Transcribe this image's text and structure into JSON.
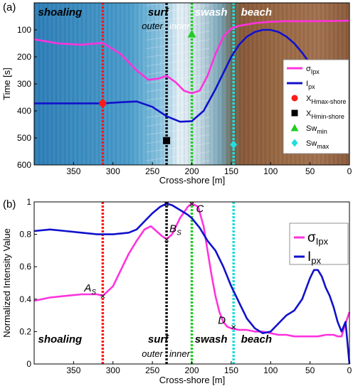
{
  "chart_data": [
    {
      "panel_label": "(a)",
      "type": "line",
      "xlabel": "Cross-shore [m]",
      "ylabel": "Time [s]",
      "xlim": [
        400,
        0
      ],
      "ylim": [
        600,
        0
      ],
      "xticks": [
        350,
        300,
        250,
        200,
        150,
        100,
        50,
        0
      ],
      "yticks": [
        100,
        200,
        300,
        400,
        500,
        600
      ],
      "zones": [
        {
          "label": "shoaling",
          "color": "#000000"
        },
        {
          "label": "surf",
          "color": "#000000"
        },
        {
          "label": "swash",
          "color": "#ffffff"
        },
        {
          "label": "beach",
          "color": "#ffffff"
        }
      ],
      "subzones": [
        {
          "label": "outer",
          "color": "#000000"
        },
        {
          "label": "inner",
          "color": "#ffffff"
        }
      ],
      "vlines": [
        {
          "x": 313,
          "color": "#ff1a1a"
        },
        {
          "x": 232,
          "color": "#111111"
        },
        {
          "x": 200,
          "color": "#22cc22"
        },
        {
          "x": 147,
          "color": "#22dddd"
        }
      ],
      "series": [
        {
          "color": "#ff33dd",
          "x": [
            400,
            370,
            340,
            313,
            290,
            270,
            255,
            242,
            232,
            220,
            210,
            200,
            190,
            180,
            170,
            160,
            150,
            140,
            120,
            100,
            80,
            60,
            40,
            20,
            0
          ],
          "y": [
            135,
            150,
            155,
            148,
            190,
            250,
            285,
            280,
            270,
            295,
            325,
            335,
            325,
            270,
            190,
            125,
            95,
            85,
            75,
            70,
            68,
            68,
            68,
            67,
            66
          ]
        },
        {
          "color": "#1111cc",
          "x": [
            400,
            370,
            340,
            313,
            290,
            270,
            250,
            232,
            215,
            200,
            185,
            170,
            160,
            150,
            140,
            130,
            120,
            110,
            100,
            90,
            80,
            70,
            60,
            50,
            40,
            30,
            20,
            10,
            0
          ],
          "y": [
            372,
            372,
            372,
            372,
            368,
            365,
            385,
            420,
            440,
            438,
            400,
            320,
            260,
            200,
            155,
            125,
            108,
            100,
            100,
            108,
            125,
            150,
            185,
            225,
            265,
            290,
            300,
            295,
            280
          ]
        }
      ],
      "markers": [
        {
          "x": 313,
          "y": 372,
          "shape": "circle",
          "color": "#ff1a1a"
        },
        {
          "x": 232,
          "y": 510,
          "shape": "square",
          "color": "#000000"
        },
        {
          "x": 200,
          "y": 115,
          "shape": "triangle",
          "color": "#22cc22"
        },
        {
          "x": 147,
          "y": 525,
          "shape": "diamond",
          "color": "#22dddd"
        }
      ],
      "legend": [
        {
          "label": "σ",
          "sub": "Ipx",
          "kind": "line",
          "color": "#ff33dd"
        },
        {
          "label": "I",
          "sub": "px",
          "kind": "line",
          "color": "#1111cc"
        },
        {
          "label": "X",
          "sub": "Hmax-shore",
          "kind": "circle",
          "color": "#ff1a1a"
        },
        {
          "label": "X",
          "sub": "Hmin-shore",
          "kind": "square",
          "color": "#000000"
        },
        {
          "label": "Sw",
          "sub": "min",
          "kind": "triangle",
          "color": "#22cc22"
        },
        {
          "label": "Sw",
          "sub": "max",
          "kind": "diamond",
          "color": "#22dddd"
        }
      ],
      "legend_position": "center-right"
    },
    {
      "panel_label": "(b)",
      "type": "line",
      "xlabel": "Cross-shore [m]",
      "ylabel": "Normalized Intensity Value",
      "xlim": [
        400,
        0
      ],
      "ylim": [
        0,
        1
      ],
      "xticks": [
        350,
        300,
        250,
        200,
        150,
        100,
        50,
        0
      ],
      "yticks": [
        0,
        0.2,
        0.4,
        0.6,
        0.8,
        1
      ],
      "zones": [
        {
          "label": "shoaling"
        },
        {
          "label": "surf"
        },
        {
          "label": "swash"
        },
        {
          "label": "beach"
        }
      ],
      "subzones": [
        {
          "label": "outer"
        },
        {
          "label": "inner"
        }
      ],
      "vlines": [
        {
          "x": 313,
          "color": "#ff1a1a"
        },
        {
          "x": 232,
          "color": "#111111"
        },
        {
          "x": 200,
          "color": "#22cc22"
        },
        {
          "x": 147,
          "color": "#22dddd"
        }
      ],
      "series": [
        {
          "color": "#ff33dd",
          "x": [
            400,
            380,
            360,
            340,
            320,
            313,
            300,
            290,
            280,
            270,
            260,
            252,
            245,
            238,
            232,
            225,
            215,
            205,
            200,
            192,
            185,
            180,
            175,
            170,
            165,
            160,
            155,
            150,
            140,
            130,
            120,
            110,
            100,
            90,
            80,
            70,
            60,
            50,
            40,
            30,
            20,
            15,
            10,
            5,
            0
          ],
          "y": [
            0.39,
            0.41,
            0.42,
            0.43,
            0.43,
            0.42,
            0.48,
            0.58,
            0.68,
            0.76,
            0.83,
            0.85,
            0.82,
            0.79,
            0.77,
            0.8,
            0.9,
            0.97,
            0.99,
            0.97,
            0.85,
            0.7,
            0.55,
            0.42,
            0.32,
            0.26,
            0.23,
            0.22,
            0.21,
            0.21,
            0.2,
            0.2,
            0.19,
            0.18,
            0.18,
            0.17,
            0.17,
            0.17,
            0.17,
            0.18,
            0.18,
            0.17,
            0.17,
            0.25,
            0.32
          ]
        },
        {
          "color": "#1111cc",
          "x": [
            400,
            380,
            360,
            340,
            320,
            300,
            280,
            270,
            260,
            250,
            240,
            232,
            225,
            215,
            205,
            200,
            190,
            180,
            170,
            160,
            150,
            140,
            130,
            120,
            110,
            100,
            90,
            80,
            70,
            60,
            50,
            45,
            40,
            35,
            30,
            25,
            20,
            15,
            10,
            5,
            0
          ],
          "y": [
            0.82,
            0.83,
            0.82,
            0.81,
            0.8,
            0.8,
            0.81,
            0.83,
            0.88,
            0.93,
            0.97,
            0.99,
            0.98,
            0.95,
            0.92,
            0.9,
            0.84,
            0.76,
            0.7,
            0.6,
            0.48,
            0.38,
            0.28,
            0.22,
            0.19,
            0.2,
            0.25,
            0.3,
            0.33,
            0.4,
            0.53,
            0.58,
            0.58,
            0.54,
            0.47,
            0.42,
            0.35,
            0.26,
            0.2,
            0.26,
            0.0
          ]
        }
      ],
      "point_labels": [
        {
          "label": "A",
          "sub": "S",
          "x": 313,
          "y": 0.42
        },
        {
          "label": "B",
          "sub": "S",
          "x": 232,
          "y": 0.77
        },
        {
          "label": "C",
          "sub": "",
          "x": 200,
          "y": 0.99
        },
        {
          "label": "D",
          "sub": "",
          "x": 147,
          "y": 0.23
        }
      ],
      "extra_marks": [
        {
          "x": 232,
          "y": 0.99
        }
      ],
      "legend": [
        {
          "label": "σ",
          "sub": "Ipx",
          "color": "#ff33dd"
        },
        {
          "label": "I",
          "sub": "px",
          "color": "#1111cc"
        }
      ],
      "legend_position": "top-right"
    }
  ]
}
